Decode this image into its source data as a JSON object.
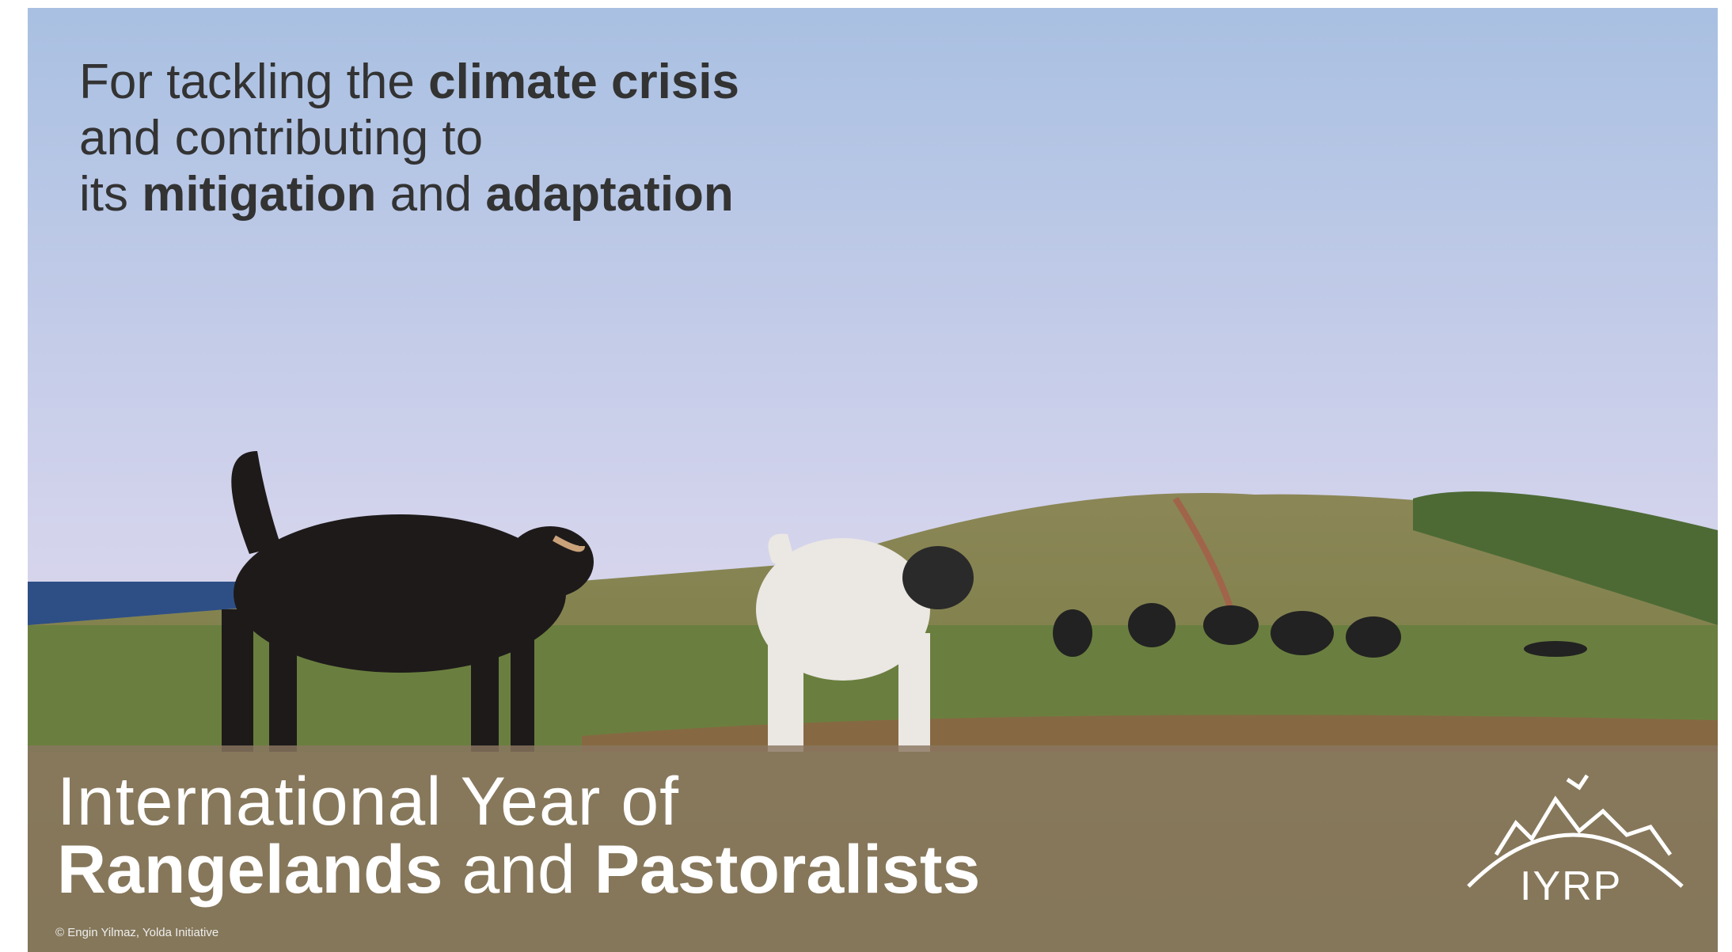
{
  "headline": {
    "lines": [
      [
        {
          "text": "For tackling the ",
          "bold": false
        },
        {
          "text": "climate crisis",
          "bold": true
        }
      ],
      [
        {
          "text": "and contributing to",
          "bold": false
        }
      ],
      [
        {
          "text": "its ",
          "bold": false
        },
        {
          "text": "mitigation",
          "bold": true
        },
        {
          "text": " and ",
          "bold": false
        },
        {
          "text": "adaptation",
          "bold": true
        }
      ]
    ]
  },
  "banner": {
    "lines": [
      [
        {
          "text": "International Year of",
          "bold": false
        }
      ],
      [
        {
          "text": "Rangelands",
          "bold": true
        },
        {
          "text": " and ",
          "bold": false
        },
        {
          "text": "Pastoralists",
          "bold": true
        }
      ]
    ]
  },
  "logo": {
    "label": "IYRP"
  },
  "credit": "© Engin Yilmaz, Yolda Initiative"
}
